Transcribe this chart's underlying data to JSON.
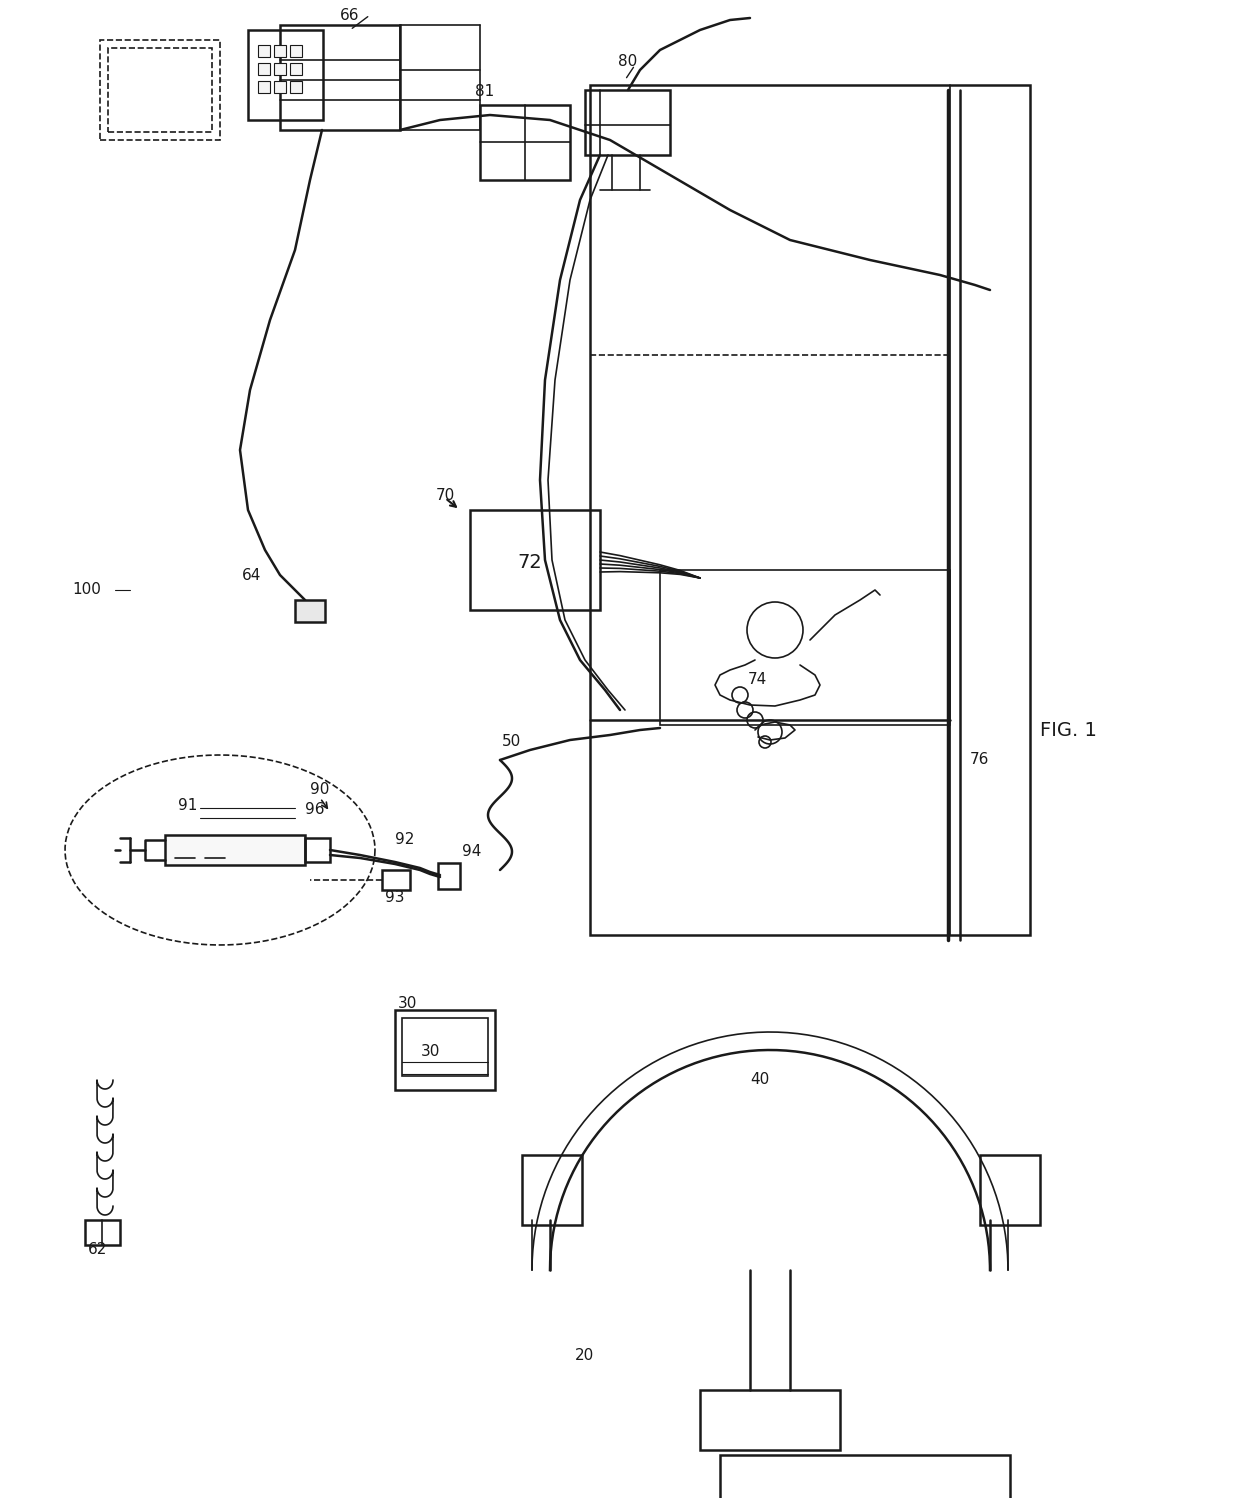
{
  "background_color": "#ffffff",
  "line_color": "#1a1a1a",
  "fig_label": "FIG. 1"
}
